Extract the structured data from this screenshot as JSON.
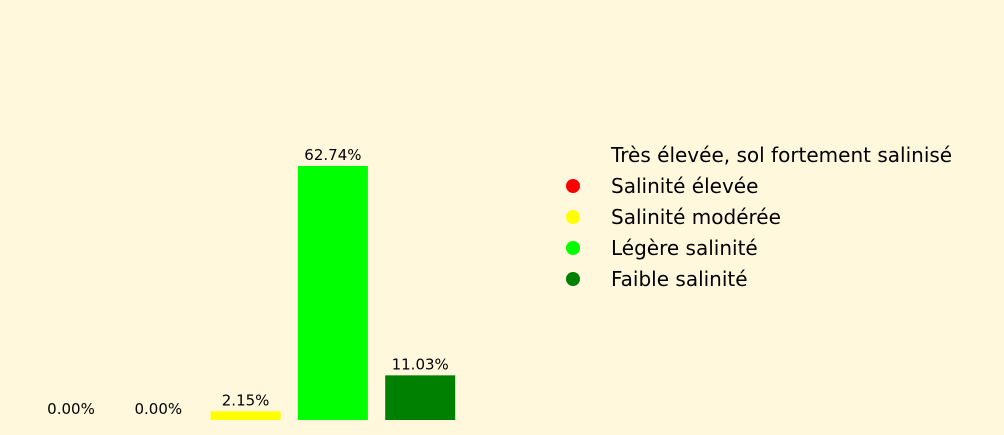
{
  "background": "#fff8dc",
  "chart_data": {
    "type": "bar",
    "title": "",
    "xlabel": "",
    "ylabel": "",
    "grid": false,
    "legend_position": "right",
    "categories": [
      "Très élevée, sol fortement salinisé",
      "Salinité élevée",
      "Salinité modérée",
      "Légère salinité",
      "Faible salinité"
    ],
    "values": [
      0.0,
      0.0,
      2.15,
      62.74,
      11.03
    ],
    "labels": [
      "0.00%",
      "0.00%",
      "2.15%",
      "62.74%",
      "11.03%"
    ],
    "colors": [
      "#fff8dc",
      "#ff0000",
      "#ffff00",
      "#00ff00",
      "#008000"
    ],
    "ylim": [
      0,
      62.74
    ]
  }
}
